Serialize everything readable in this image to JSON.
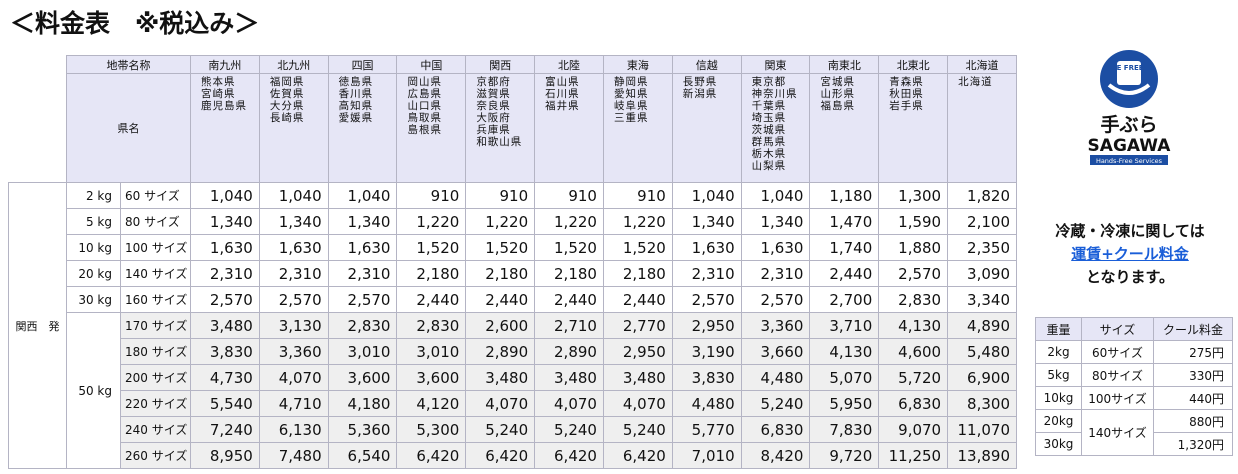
{
  "header": {
    "title": "＜料金表　※税込み＞"
  },
  "rate_table": {
    "zone_label": "地帯名称",
    "pref_label": "県名",
    "origin": "関西　発",
    "regions": [
      {
        "name": "南九州",
        "prefectures": [
          "熊本県",
          "宮崎県",
          "鹿児島県"
        ]
      },
      {
        "name": "北九州",
        "prefectures": [
          "福岡県",
          "佐賀県",
          "大分県",
          "長崎県"
        ]
      },
      {
        "name": "四国",
        "prefectures": [
          "徳島県",
          "香川県",
          "高知県",
          "愛媛県"
        ]
      },
      {
        "name": "中国",
        "prefectures": [
          "岡山県",
          "広島県",
          "山口県",
          "鳥取県",
          "島根県"
        ]
      },
      {
        "name": "関西",
        "prefectures": [
          "京都府",
          "滋賀県",
          "奈良県",
          "大阪府",
          "兵庫県",
          "和歌山県"
        ]
      },
      {
        "name": "北陸",
        "prefectures": [
          "富山県",
          "石川県",
          "福井県"
        ]
      },
      {
        "name": "東海",
        "prefectures": [
          "静岡県",
          "愛知県",
          "岐阜県",
          "三重県"
        ]
      },
      {
        "name": "信越",
        "prefectures": [
          "長野県",
          "新潟県"
        ]
      },
      {
        "name": "関東",
        "prefectures": [
          "東京都",
          "神奈川県",
          "千葉県",
          "埼玉県",
          "茨城県",
          "群馬県",
          "栃木県",
          "山梨県"
        ]
      },
      {
        "name": "南東北",
        "prefectures": [
          "宮城県",
          "山形県",
          "福島県"
        ]
      },
      {
        "name": "北東北",
        "prefectures": [
          "青森県",
          "秋田県",
          "岩手県"
        ]
      },
      {
        "name": "北海道",
        "prefectures": [
          "北海道"
        ]
      }
    ],
    "rows": [
      {
        "weight": "2 kg",
        "size": "60 サイズ",
        "prices": [
          "1,040",
          "1,040",
          "1,040",
          "910",
          "910",
          "910",
          "910",
          "1,040",
          "1,040",
          "1,180",
          "1,300",
          "1,820"
        ]
      },
      {
        "weight": "5 kg",
        "size": "80 サイズ",
        "prices": [
          "1,340",
          "1,340",
          "1,340",
          "1,220",
          "1,220",
          "1,220",
          "1,220",
          "1,340",
          "1,340",
          "1,470",
          "1,590",
          "2,100"
        ]
      },
      {
        "weight": "10 kg",
        "size": "100 サイズ",
        "prices": [
          "1,630",
          "1,630",
          "1,630",
          "1,520",
          "1,520",
          "1,520",
          "1,520",
          "1,630",
          "1,630",
          "1,740",
          "1,880",
          "2,350"
        ]
      },
      {
        "weight": "20 kg",
        "size": "140 サイズ",
        "prices": [
          "2,310",
          "2,310",
          "2,310",
          "2,180",
          "2,180",
          "2,180",
          "2,180",
          "2,310",
          "2,310",
          "2,440",
          "2,570",
          "3,090"
        ]
      },
      {
        "weight": "30 kg",
        "size": "160 サイズ",
        "prices": [
          "2,570",
          "2,570",
          "2,570",
          "2,440",
          "2,440",
          "2,440",
          "2,440",
          "2,570",
          "2,570",
          "2,700",
          "2,830",
          "3,340"
        ]
      },
      {
        "weight": "50 kg",
        "size": "170 サイズ",
        "prices": [
          "3,480",
          "3,130",
          "2,830",
          "2,830",
          "2,600",
          "2,710",
          "2,770",
          "2,950",
          "3,360",
          "3,710",
          "4,130",
          "4,890"
        ]
      },
      {
        "size": "180 サイズ",
        "prices": [
          "3,830",
          "3,360",
          "3,010",
          "3,010",
          "2,890",
          "2,890",
          "2,950",
          "3,190",
          "3,660",
          "4,130",
          "4,600",
          "5,480"
        ]
      },
      {
        "size": "200 サイズ",
        "prices": [
          "4,730",
          "4,070",
          "3,600",
          "3,600",
          "3,480",
          "3,480",
          "3,480",
          "3,830",
          "4,480",
          "5,070",
          "5,720",
          "6,900"
        ]
      },
      {
        "size": "220 サイズ",
        "prices": [
          "5,540",
          "4,710",
          "4,180",
          "4,120",
          "4,070",
          "4,070",
          "4,070",
          "4,480",
          "5,240",
          "5,950",
          "6,830",
          "8,300"
        ]
      },
      {
        "size": "240 サイズ",
        "prices": [
          "7,240",
          "6,130",
          "5,360",
          "5,300",
          "5,240",
          "5,240",
          "5,240",
          "5,770",
          "6,830",
          "7,830",
          "9,070",
          "11,070"
        ]
      },
      {
        "size": "260 サイズ",
        "prices": [
          "8,950",
          "7,480",
          "6,540",
          "6,420",
          "6,420",
          "6,420",
          "6,420",
          "7,010",
          "8,420",
          "9,720",
          "11,250",
          "13,890"
        ]
      }
    ]
  },
  "logo": {
    "badge": "BE FREE!",
    "brand_jp": "手ぶら",
    "brand_en": "SAGAWA",
    "tagline": "Hands-Free Services"
  },
  "note": {
    "line1": "冷蔵・冷凍に関しては",
    "link": "運賃+クール料金",
    "line3": "となります。"
  },
  "cool_table": {
    "headers": [
      "重量",
      "サイズ",
      "クール料金"
    ],
    "rows": [
      {
        "weight": "2kg",
        "size": "60サイズ",
        "price": "275円"
      },
      {
        "weight": "5kg",
        "size": "80サイズ",
        "price": "330円"
      },
      {
        "weight": "10kg",
        "size": "100サイズ",
        "price": "440円"
      },
      {
        "weight": "20kg",
        "size": "140サイズ",
        "price": "880円"
      },
      {
        "weight": "30kg",
        "price": "1,320円"
      }
    ]
  }
}
